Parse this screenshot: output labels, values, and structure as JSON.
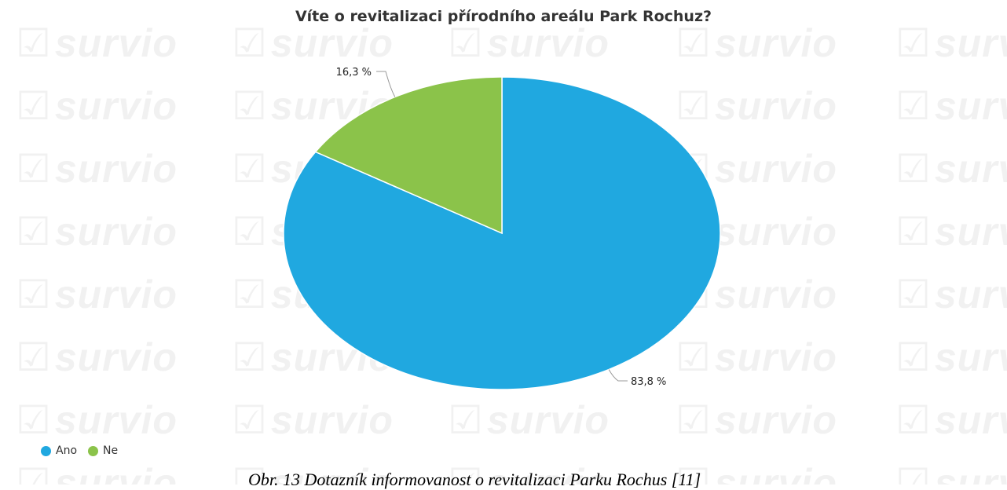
{
  "watermark": "survio",
  "chart_data": {
    "type": "pie",
    "title": "Víte o revitalizaci přírodního areálu Park Rochuz?",
    "slices": [
      {
        "name": "Ano",
        "value": 83.8,
        "label": "83,8 %",
        "color": "#20a8e0"
      },
      {
        "name": "Ne",
        "value": 16.3,
        "label": "16,3 %",
        "color": "#8bc34a"
      }
    ],
    "legend_position": "bottom-left"
  },
  "caption": "Obr. 13  Dotazník informovanost o revitalizaci Parku Rochus [11]"
}
